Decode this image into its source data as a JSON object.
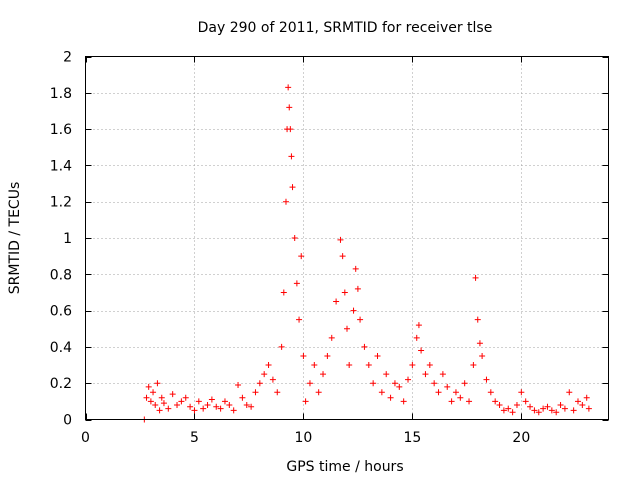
{
  "chart_data": {
    "type": "scatter",
    "title": "Day 290 of 2011, SRMTID for receiver tlse",
    "xlabel": "GPS time / hours",
    "ylabel": "SRMTID / TECUs",
    "xlim": [
      0,
      24
    ],
    "ylim": [
      0,
      2
    ],
    "xticks": [
      0,
      5,
      10,
      15,
      20
    ],
    "yticks": [
      0,
      0.2,
      0.4,
      0.6,
      0.8,
      1,
      1.2,
      1.4,
      1.6,
      1.8,
      2
    ],
    "xtick_labels": [
      "0",
      "5",
      "10",
      "15",
      "20"
    ],
    "ytick_labels": [
      "0",
      "0.2",
      "0.4",
      "0.6",
      "0.8",
      "1",
      "1.2",
      "1.4",
      "1.6",
      "1.8",
      "2"
    ],
    "grid": true,
    "marker": "plus",
    "series": [
      {
        "name": "SRMTID",
        "color": "#ff0000",
        "x": [
          2.7,
          2.8,
          2.9,
          3.0,
          3.1,
          3.2,
          3.3,
          3.4,
          3.5,
          3.6,
          3.8,
          4.0,
          4.2,
          4.4,
          4.6,
          4.8,
          5.0,
          5.2,
          5.4,
          5.6,
          5.8,
          6.0,
          6.2,
          6.4,
          6.6,
          6.8,
          7.0,
          7.2,
          7.4,
          7.6,
          7.8,
          8.0,
          8.2,
          8.4,
          8.6,
          8.8,
          9.0,
          9.1,
          9.2,
          9.25,
          9.3,
          9.35,
          9.4,
          9.45,
          9.5,
          9.6,
          9.7,
          9.8,
          9.9,
          10.0,
          10.1,
          10.3,
          10.5,
          10.7,
          10.9,
          11.1,
          11.3,
          11.5,
          11.7,
          11.8,
          11.9,
          12.0,
          12.1,
          12.3,
          12.4,
          12.5,
          12.6,
          12.8,
          13.0,
          13.2,
          13.4,
          13.6,
          13.8,
          14.0,
          14.2,
          14.4,
          14.6,
          14.8,
          15.0,
          15.2,
          15.3,
          15.4,
          15.6,
          15.8,
          16.0,
          16.2,
          16.4,
          16.6,
          16.8,
          17.0,
          17.2,
          17.4,
          17.6,
          17.8,
          17.9,
          18.0,
          18.1,
          18.2,
          18.4,
          18.6,
          18.8,
          19.0,
          19.2,
          19.4,
          19.6,
          19.8,
          20.0,
          20.2,
          20.4,
          20.6,
          20.8,
          21.0,
          21.2,
          21.4,
          21.6,
          21.8,
          22.0,
          22.2,
          22.4,
          22.6,
          22.8,
          23.0,
          23.1
        ],
        "y": [
          0.0,
          0.12,
          0.18,
          0.1,
          0.15,
          0.08,
          0.2,
          0.05,
          0.12,
          0.09,
          0.06,
          0.14,
          0.08,
          0.1,
          0.12,
          0.07,
          0.05,
          0.1,
          0.06,
          0.08,
          0.11,
          0.07,
          0.06,
          0.1,
          0.08,
          0.05,
          0.19,
          0.12,
          0.08,
          0.07,
          0.15,
          0.2,
          0.25,
          0.3,
          0.22,
          0.15,
          0.4,
          0.7,
          1.2,
          1.6,
          1.83,
          1.72,
          1.6,
          1.45,
          1.28,
          1.0,
          0.75,
          0.55,
          0.9,
          0.35,
          0.1,
          0.2,
          0.3,
          0.15,
          0.25,
          0.35,
          0.45,
          0.65,
          0.99,
          0.9,
          0.7,
          0.5,
          0.3,
          0.6,
          0.83,
          0.72,
          0.55,
          0.4,
          0.3,
          0.2,
          0.35,
          0.15,
          0.25,
          0.12,
          0.2,
          0.18,
          0.1,
          0.22,
          0.3,
          0.45,
          0.52,
          0.38,
          0.25,
          0.3,
          0.2,
          0.15,
          0.25,
          0.18,
          0.1,
          0.15,
          0.12,
          0.2,
          0.1,
          0.3,
          0.78,
          0.55,
          0.42,
          0.35,
          0.22,
          0.15,
          0.1,
          0.08,
          0.05,
          0.06,
          0.04,
          0.08,
          0.15,
          0.1,
          0.07,
          0.05,
          0.04,
          0.06,
          0.07,
          0.05,
          0.04,
          0.08,
          0.06,
          0.15,
          0.05,
          0.1,
          0.08,
          0.12,
          0.06
        ]
      }
    ]
  }
}
